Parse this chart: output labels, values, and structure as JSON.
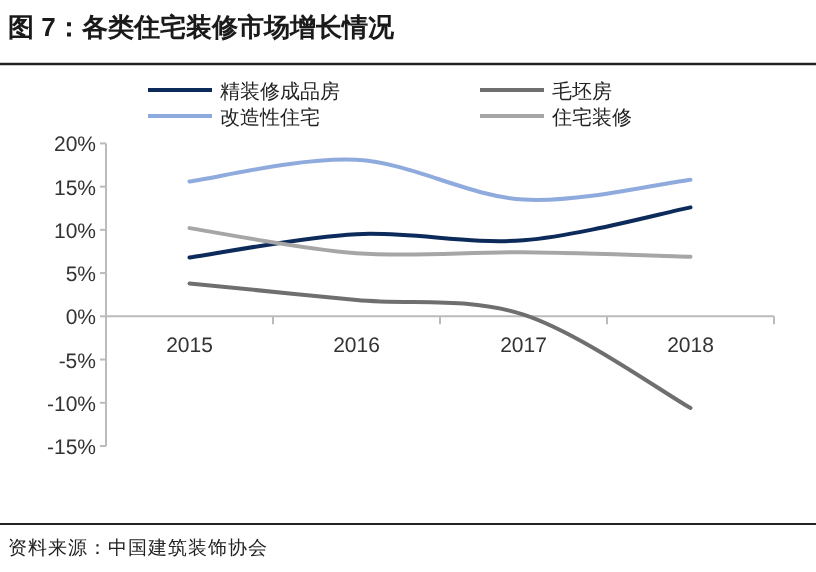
{
  "chart_data": {
    "type": "line",
    "title": "图 7：各类住宅装修市场增长情况",
    "categories": [
      "2015",
      "2016",
      "2017",
      "2018"
    ],
    "series": [
      {
        "name": "精装修成品房",
        "color": "#0d2b5a",
        "values": [
          6.8,
          9.5,
          8.8,
          12.6
        ]
      },
      {
        "name": "毛坯房",
        "color": "#6f6f6f",
        "values": [
          3.8,
          1.9,
          0.2,
          -10.6
        ]
      },
      {
        "name": "改造性住宅",
        "color": "#8faadc",
        "values": [
          15.6,
          18.1,
          13.5,
          15.8
        ]
      },
      {
        "name": "住宅装修",
        "color": "#a6a6a6",
        "values": [
          10.2,
          7.3,
          7.4,
          6.9
        ]
      }
    ],
    "ylim": [
      -15,
      20
    ],
    "yticks": [
      {
        "value": -15,
        "label": "-15%"
      },
      {
        "value": -10,
        "label": "-10%"
      },
      {
        "value": -5,
        "label": "-5%"
      },
      {
        "value": 0,
        "label": "0%"
      },
      {
        "value": 5,
        "label": "5%"
      },
      {
        "value": 10,
        "label": "10%"
      },
      {
        "value": 15,
        "label": "15%"
      },
      {
        "value": 20,
        "label": "20%"
      }
    ],
    "legend": "top",
    "grid": false,
    "marker": "none",
    "line_style": "solid",
    "annotations": [
      "资料来源：中国建筑装饰协会"
    ]
  }
}
